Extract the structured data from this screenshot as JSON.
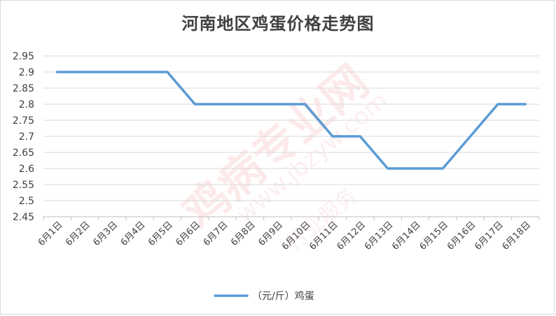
{
  "chart_data": {
    "type": "line",
    "title": "河南地区鸡蛋价格走势图",
    "categories": [
      "6月1日",
      "6月2日",
      "6月3日",
      "6月4日",
      "6月5日",
      "6月6日",
      "6月7日",
      "6月8日",
      "6月9日",
      "6月10日",
      "6月11日",
      "6月12日",
      "6月13日",
      "6月14日",
      "6月15日",
      "6月16日",
      "6月17日",
      "6月18日"
    ],
    "series": [
      {
        "name": "（元/斤）鸡蛋",
        "values": [
          2.9,
          2.9,
          2.9,
          2.9,
          2.9,
          2.8,
          2.8,
          2.8,
          2.8,
          2.8,
          2.7,
          2.7,
          2.6,
          2.6,
          2.6,
          2.7,
          2.8,
          2.8
        ]
      }
    ],
    "yticks": [
      "2.45",
      "2.5",
      "2.55",
      "2.6",
      "2.65",
      "2.7",
      "2.75",
      "2.8",
      "2.85",
      "2.9",
      "2.95"
    ],
    "ylim": [
      2.45,
      2.95
    ],
    "grid": true,
    "legend": "bottom",
    "line_color": "#5b9bd5"
  },
  "watermark": {
    "main": "鸡病专业网",
    "url": "www.jbzyw.com",
    "sub": "行业服务"
  }
}
